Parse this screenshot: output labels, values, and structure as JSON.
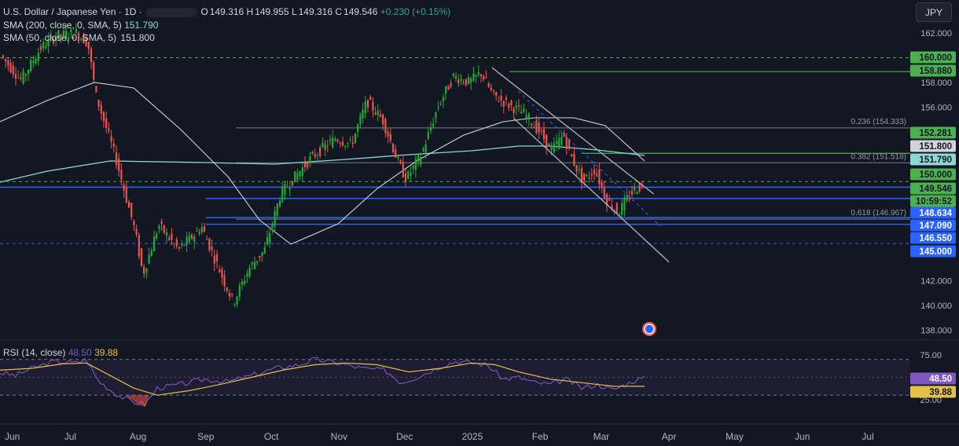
{
  "header": {
    "title": "U.S. Dollar / Japanese Yen · 1D ·",
    "ohlc": {
      "o_label": "O",
      "o": "149.316",
      "h_label": "H",
      "h": "149.955",
      "l_label": "L",
      "l": "149.316",
      "c_label": "C",
      "c": "149.546",
      "change": "+0.230 (+0.15%)"
    },
    "currency_button": "JPY"
  },
  "indicators": {
    "sma200": {
      "label": "SMA (200, close, 0, SMA, 5)",
      "value": "151.790",
      "color": "#8fd6d6"
    },
    "sma50": {
      "label": "SMA (50, close, 0, SMA, 5)",
      "value": "151.800",
      "color": "#d1d4dc"
    }
  },
  "colors": {
    "bg": "#131722",
    "up": "#26a69a",
    "up_candle": "#22ab37",
    "down": "#ef5350",
    "blue": "#2962ff",
    "green_line": "#4caf50",
    "rsi": "#7e57c2",
    "rsi_ma": "#e5c04b",
    "grid": "#2a2e39"
  },
  "chart_data": {
    "type": "candlestick",
    "price_axis": {
      "ticks": [
        "162.000",
        "158.000",
        "156.000",
        "142.000",
        "140.000",
        "138.000"
      ],
      "range": [
        137.0,
        163.0
      ]
    },
    "time_axis": {
      "labels": [
        "Jun",
        "Jul",
        "Aug",
        "Sep",
        "Oct",
        "Nov",
        "Dec",
        "2025",
        "Feb",
        "Mar",
        "Apr",
        "May",
        "Jun",
        "Jul"
      ]
    },
    "horizontal_levels": [
      {
        "value": 160.0,
        "label": "160.000",
        "style": "dashed-green-label"
      },
      {
        "value": 158.88,
        "label": "158.880",
        "style": "green"
      },
      {
        "value": 152.281,
        "label": "152.281",
        "style": "green-label"
      },
      {
        "value": 151.8,
        "label": "151.800",
        "style": "white-label"
      },
      {
        "value": 151.79,
        "label": "151.790",
        "style": "cyan-label"
      },
      {
        "value": 150.0,
        "label": "150.000",
        "style": "dashed-green-label"
      },
      {
        "value": 149.546,
        "label": "149.546",
        "style": "price-label"
      },
      {
        "value": 148.634,
        "label": "148.634",
        "style": "blue-label"
      },
      {
        "value": 147.09,
        "label": "147.090",
        "style": "blue-label"
      },
      {
        "value": 146.55,
        "label": "146.550",
        "style": "blue-label"
      },
      {
        "value": 145.0,
        "label": "145.000",
        "style": "dashed-blue-label"
      }
    ],
    "countdown": "10:59:52",
    "fibonacci": [
      {
        "ratio": "0.236",
        "value": 154.333,
        "label": "0.236 (154.333)"
      },
      {
        "ratio": "0.382",
        "value": 151.518,
        "label": "0.382 (151.518)"
      },
      {
        "ratio": "0.618",
        "value": 146.967,
        "label": "0.618 (146.967)"
      }
    ],
    "channel": {
      "upper": [
        [
          "2025-01-10",
          159.2
        ],
        [
          "2025-03-25",
          149.0
        ]
      ],
      "lower": [
        [
          "2025-01-20",
          155.1
        ],
        [
          "2025-04-01",
          143.5
        ]
      ]
    },
    "rsi": {
      "label": "RSI (14, close)",
      "value": "48.50",
      "ma_value": "39.88",
      "axis_ticks": [
        "75.00",
        "25.00"
      ],
      "levels": [
        70,
        30
      ],
      "range": [
        15,
        80
      ]
    }
  }
}
